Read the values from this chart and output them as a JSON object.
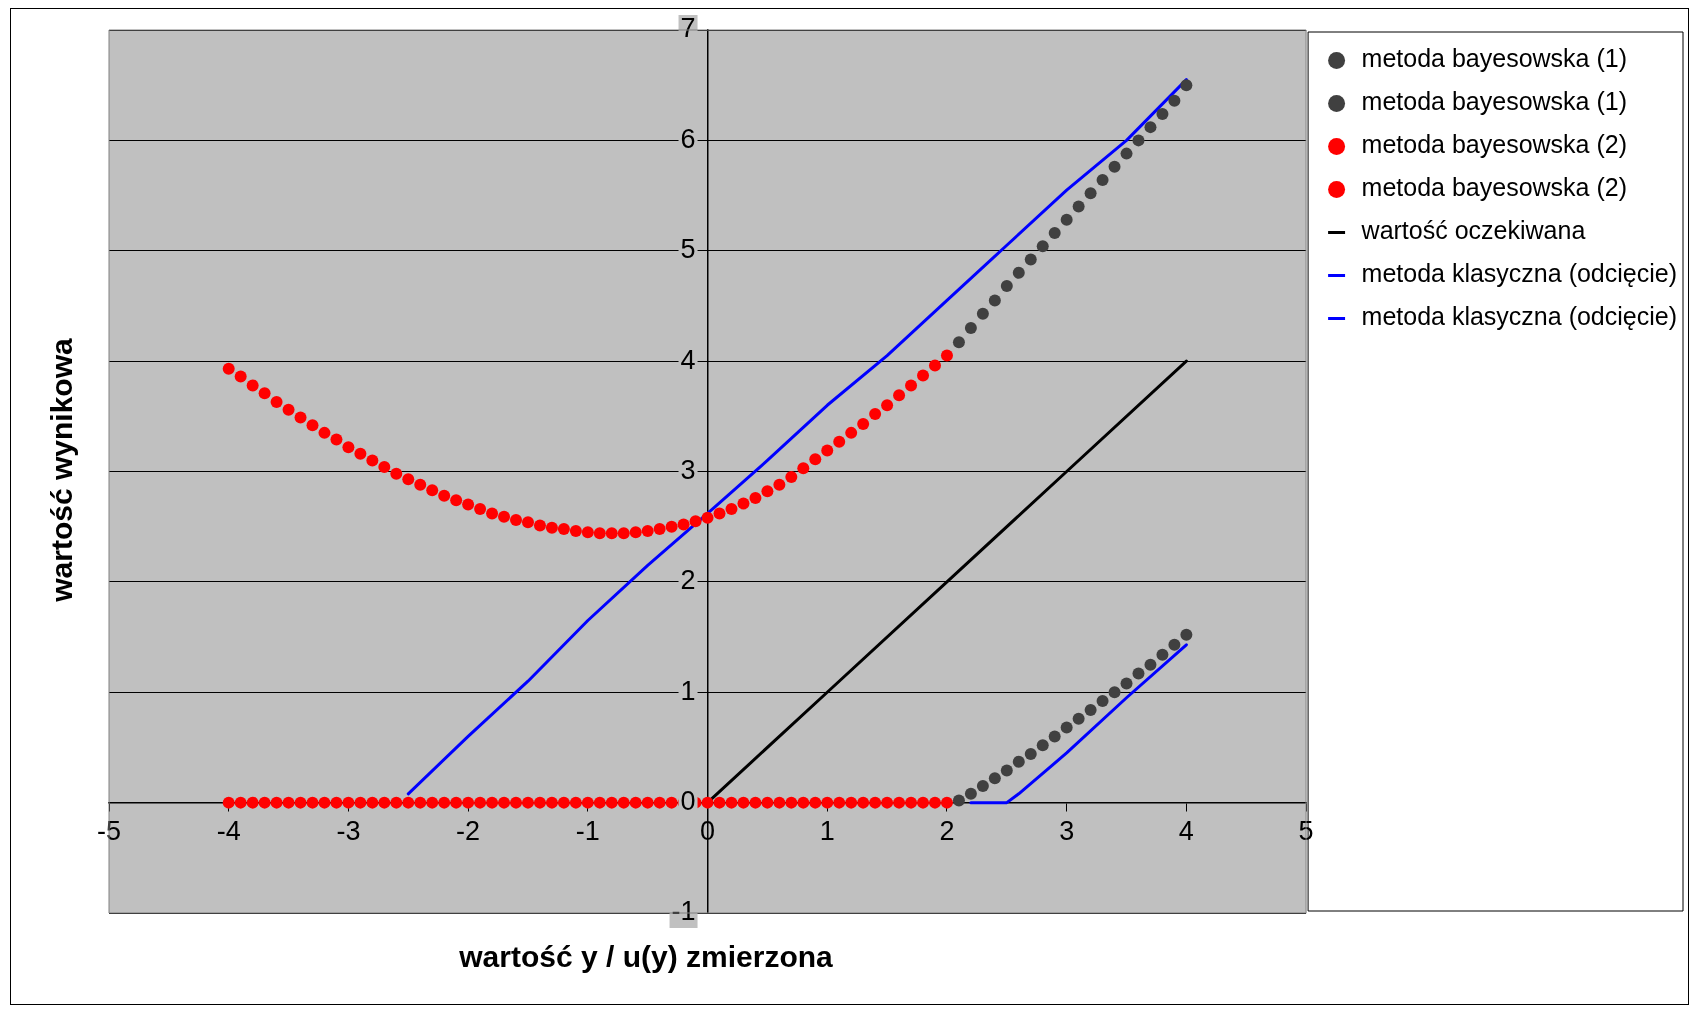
{
  "chart_data": {
    "type": "scatter",
    "xlabel": "wartość y / u(y) zmierzona",
    "ylabel": "wartość wynikowa",
    "xlim": [
      -5,
      5
    ],
    "xticks": [
      -5,
      -4,
      -3,
      -2,
      -1,
      0,
      1,
      2,
      3,
      4,
      5
    ],
    "ylim": [
      -1,
      7
    ],
    "yticks": [
      -1,
      0,
      1,
      2,
      3,
      4,
      5,
      6,
      7
    ],
    "grid": "y",
    "legend": "right",
    "series": [
      {
        "name": "metoda bayesowska (1)",
        "type": "scatter",
        "marker": "circle",
        "color": "#404040",
        "x": [
          2.1,
          2.2,
          2.3,
          2.4,
          2.5,
          2.6,
          2.7,
          2.8,
          2.9,
          3.0,
          3.1,
          3.2,
          3.3,
          3.4,
          3.5,
          3.6,
          3.7,
          3.8,
          3.9,
          4.0
        ],
        "values": [
          4.17,
          4.3,
          4.43,
          4.55,
          4.68,
          4.8,
          4.92,
          5.04,
          5.16,
          5.28,
          5.4,
          5.52,
          5.64,
          5.76,
          5.88,
          6.0,
          6.12,
          6.24,
          6.36,
          6.5
        ]
      },
      {
        "name": "metoda bayesowska (1)",
        "type": "scatter",
        "marker": "circle",
        "color": "#404040",
        "x": [
          2.1,
          2.2,
          2.3,
          2.4,
          2.5,
          2.6,
          2.7,
          2.8,
          2.9,
          3.0,
          3.1,
          3.2,
          3.3,
          3.4,
          3.5,
          3.6,
          3.7,
          3.8,
          3.9,
          4.0
        ],
        "values": [
          0.02,
          0.08,
          0.15,
          0.22,
          0.29,
          0.37,
          0.44,
          0.52,
          0.6,
          0.68,
          0.76,
          0.84,
          0.92,
          1.0,
          1.08,
          1.17,
          1.25,
          1.34,
          1.43,
          1.52
        ]
      },
      {
        "name": "metoda bayesowska (2)",
        "type": "scatter",
        "marker": "circle",
        "color": "#ff0000",
        "x": [
          -4.0,
          -3.9,
          -3.8,
          -3.7,
          -3.6,
          -3.5,
          -3.4,
          -3.3,
          -3.2,
          -3.1,
          -3.0,
          -2.9,
          -2.8,
          -2.7,
          -2.6,
          -2.5,
          -2.4,
          -2.3,
          -2.2,
          -2.1,
          -2.0,
          -1.9,
          -1.8,
          -1.7,
          -1.6,
          -1.5,
          -1.4,
          -1.3,
          -1.2,
          -1.1,
          -1.0,
          -0.9,
          -0.8,
          -0.7,
          -0.6,
          -0.5,
          -0.4,
          -0.3,
          -0.2,
          -0.1,
          0,
          0.1,
          0.2,
          0.3,
          0.4,
          0.5,
          0.6,
          0.7,
          0.8,
          0.9,
          1.0,
          1.1,
          1.2,
          1.3,
          1.4,
          1.5,
          1.6,
          1.7,
          1.8,
          1.9,
          2.0
        ],
        "values": [
          3.93,
          3.86,
          3.78,
          3.71,
          3.63,
          3.56,
          3.49,
          3.42,
          3.35,
          3.29,
          3.22,
          3.16,
          3.1,
          3.04,
          2.98,
          2.93,
          2.88,
          2.83,
          2.78,
          2.74,
          2.7,
          2.66,
          2.62,
          2.59,
          2.56,
          2.54,
          2.51,
          2.49,
          2.48,
          2.46,
          2.45,
          2.44,
          2.44,
          2.44,
          2.45,
          2.46,
          2.48,
          2.5,
          2.52,
          2.55,
          2.58,
          2.62,
          2.66,
          2.71,
          2.76,
          2.82,
          2.88,
          2.95,
          3.03,
          3.11,
          3.19,
          3.27,
          3.35,
          3.43,
          3.52,
          3.6,
          3.69,
          3.78,
          3.87,
          3.96,
          4.05
        ]
      },
      {
        "name": "metoda bayesowska (2)",
        "type": "scatter",
        "marker": "circle",
        "color": "#ff0000",
        "x": [
          -4.0,
          -3.9,
          -3.8,
          -3.7,
          -3.6,
          -3.5,
          -3.4,
          -3.3,
          -3.2,
          -3.1,
          -3.0,
          -2.9,
          -2.8,
          -2.7,
          -2.6,
          -2.5,
          -2.4,
          -2.3,
          -2.2,
          -2.1,
          -2.0,
          -1.9,
          -1.8,
          -1.7,
          -1.6,
          -1.5,
          -1.4,
          -1.3,
          -1.2,
          -1.1,
          -1.0,
          -0.9,
          -0.8,
          -0.7,
          -0.6,
          -0.5,
          -0.4,
          -0.3,
          -0.2,
          -0.1,
          0,
          0.1,
          0.2,
          0.3,
          0.4,
          0.5,
          0.6,
          0.7,
          0.8,
          0.9,
          1.0,
          1.1,
          1.2,
          1.3,
          1.4,
          1.5,
          1.6,
          1.7,
          1.8,
          1.9,
          2.0
        ],
        "values": [
          0,
          0,
          0,
          0,
          0,
          0,
          0,
          0,
          0,
          0,
          0,
          0,
          0,
          0,
          0,
          0,
          0,
          0,
          0,
          0,
          0,
          0,
          0,
          0,
          0,
          0,
          0,
          0,
          0,
          0,
          0,
          0,
          0,
          0,
          0,
          0,
          0,
          0,
          0,
          0,
          0,
          0,
          0,
          0,
          0,
          0,
          0,
          0,
          0,
          0,
          0,
          0,
          0,
          0,
          0,
          0,
          0,
          0,
          0,
          0,
          0
        ]
      },
      {
        "name": "wartość oczekiwana",
        "type": "line",
        "marker": "none",
        "line_style": "solid",
        "color": "#000000",
        "x": [
          0,
          1,
          2,
          3,
          4
        ],
        "values": [
          0,
          1,
          2,
          3,
          4
        ]
      },
      {
        "name": "metoda klasyczna (odcięcie)",
        "type": "line",
        "marker": "none",
        "line_style": "solid",
        "color": "#0000ff",
        "x": [
          -2.5,
          -2,
          -1.5,
          -1,
          -0.5,
          0,
          0.5,
          1,
          1.5,
          2,
          2.5,
          3,
          3.5,
          4
        ],
        "values": [
          0.08,
          0.6,
          1.1,
          1.65,
          2.15,
          2.62,
          3.1,
          3.6,
          4.05,
          4.55,
          5.05,
          5.55,
          6.0,
          6.55
        ]
      },
      {
        "name": "metoda klasyczna (odcięcie)",
        "type": "line",
        "marker": "none",
        "line_style": "solid",
        "color": "#0000ff",
        "x": [
          2.2,
          2.5,
          2.6,
          3,
          3.5,
          4
        ],
        "values": [
          0,
          0,
          0.08,
          0.45,
          0.95,
          1.43
        ]
      }
    ]
  }
}
